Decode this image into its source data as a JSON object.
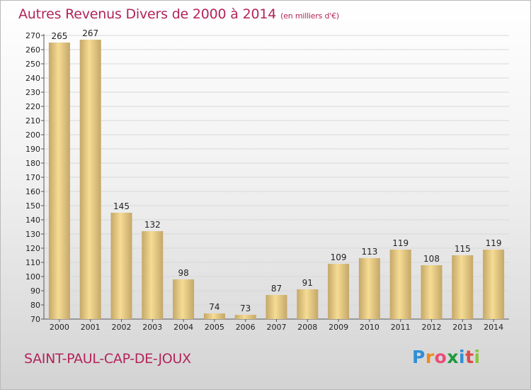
{
  "title": "Autres Revenus Divers de 2000 à 2014",
  "title_unit": "(en milliers d'€)",
  "commune": "SAINT-PAUL-CAP-DE-JOUX",
  "logo": {
    "letters": [
      "P",
      "r",
      "o",
      "x",
      "i",
      "t",
      "i"
    ]
  },
  "colors": {
    "title": "#b2245a",
    "bar_light": "#f5dc94",
    "bar_dark": "#c5a768",
    "grid": "#d8d8d8"
  },
  "chart_data": {
    "type": "bar",
    "categories": [
      "2000",
      "2001",
      "2002",
      "2003",
      "2004",
      "2005",
      "2006",
      "2007",
      "2008",
      "2009",
      "2010",
      "2011",
      "2012",
      "2013",
      "2014"
    ],
    "values": [
      265,
      267,
      145,
      132,
      98,
      74,
      73,
      87,
      91,
      109,
      113,
      119,
      108,
      115,
      119
    ],
    "ylim": [
      70,
      270
    ],
    "yticks": [
      70,
      80,
      90,
      100,
      110,
      120,
      130,
      140,
      150,
      160,
      170,
      180,
      190,
      200,
      210,
      220,
      230,
      240,
      250,
      260,
      270
    ],
    "grid": true,
    "legend": "none",
    "xlabel": "",
    "ylabel": ""
  }
}
